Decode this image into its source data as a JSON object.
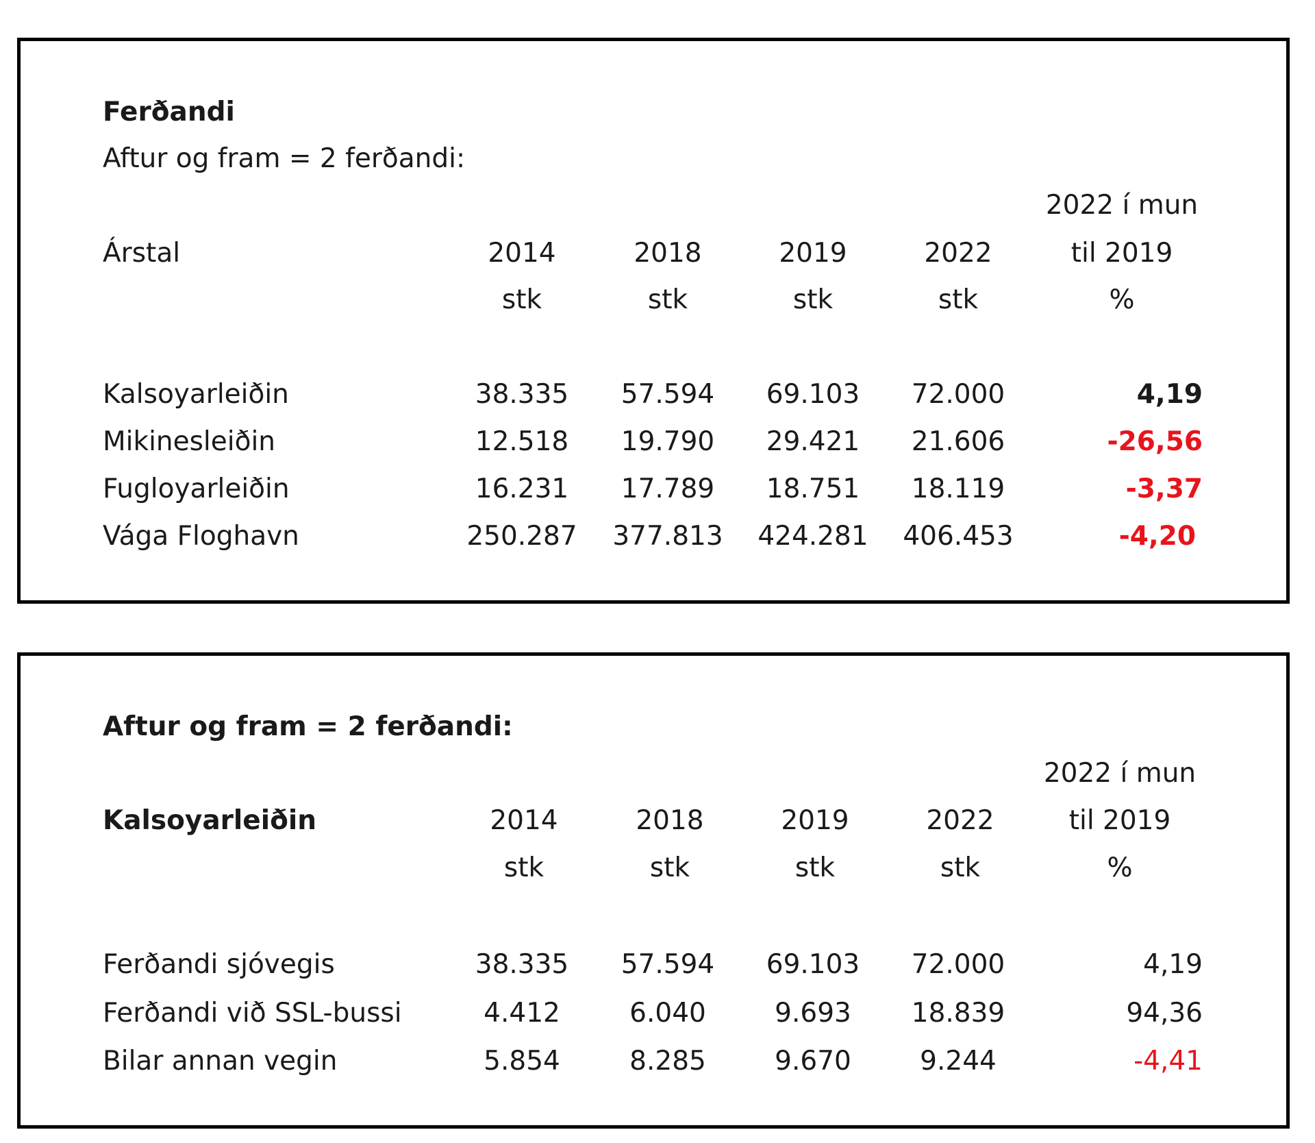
{
  "tables": [
    {
      "title": "Ferðandi",
      "subtitle": "Aftur og fram = 2 ferðandi:",
      "header_label": "Árstal",
      "years": [
        "2014",
        "2018",
        "2019",
        "2022"
      ],
      "unit": "stk",
      "diff_header": [
        "2022 í mun",
        "til 2019",
        "%"
      ],
      "rows": [
        {
          "label": "Kalsoyarleiðin",
          "values": [
            "38.335",
            "57.594",
            "69.103",
            "72.000"
          ],
          "diff": "4,19",
          "diff_negative": false
        },
        {
          "label": "Mikinesleiðin",
          "values": [
            "12.518",
            "19.790",
            "29.421",
            "21.606"
          ],
          "diff": "-26,56",
          "diff_negative": true
        },
        {
          "label": "Fugloyarleiðin",
          "values": [
            "16.231",
            "17.789",
            "18.751",
            "18.119"
          ],
          "diff": "-3,37",
          "diff_negative": true
        },
        {
          "label": "Vága Floghavn",
          "values": [
            "250.287",
            "377.813",
            "424.281",
            "406.453"
          ],
          "diff": "-4,20",
          "diff_negative": true
        }
      ]
    },
    {
      "title": "Aftur og fram = 2 ferðandi:",
      "header_label": "Kalsoyarleiðin",
      "years": [
        "2014",
        "2018",
        "2019",
        "2022"
      ],
      "unit": "stk",
      "diff_header": [
        "2022 í mun",
        "til 2019",
        "%"
      ],
      "rows": [
        {
          "label": "Ferðandi sjóvegis",
          "values": [
            "38.335",
            "57.594",
            "69.103",
            "72.000"
          ],
          "diff": "4,19",
          "diff_negative": false
        },
        {
          "label": "Ferðandi við SSL-bussi",
          "values": [
            "4.412",
            "6.040",
            "9.693",
            "18.839"
          ],
          "diff": "94,36",
          "diff_negative": false
        },
        {
          "label": "Bilar annan vegin",
          "values": [
            "5.854",
            "8.285",
            "9.670",
            "9.244"
          ],
          "diff": "-4,41",
          "diff_negative": true
        }
      ]
    }
  ],
  "colors": {
    "negative": "#e8141c",
    "text": "#1a1a1a",
    "border": "#000000"
  }
}
